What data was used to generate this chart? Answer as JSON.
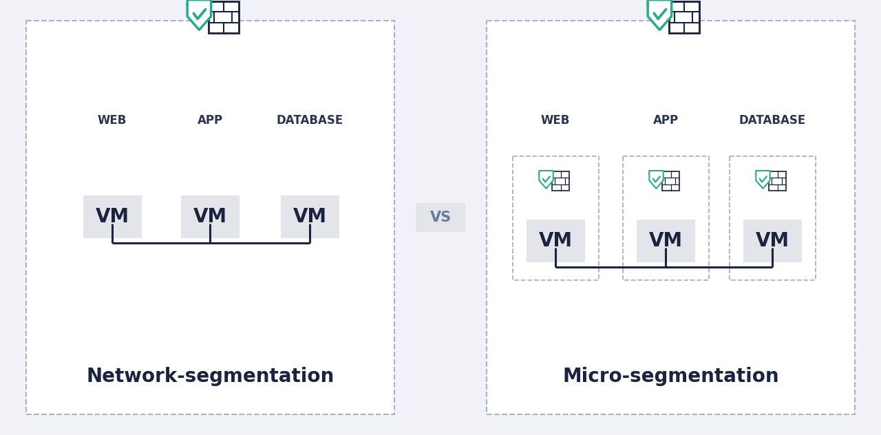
{
  "bg_color": "#f0f2f7",
  "panel_fill": "#ffffff",
  "dashed_border_color": "#aab0c8",
  "vm_box_color": "#e4e5ea",
  "dark_navy": "#1a2340",
  "teal_green": "#2aaa8f",
  "label_color": "#2a3550",
  "vs_color": "#6a7a9a",
  "vs_bg": "#e4e5ea",
  "left_title": "Network-segmentation",
  "right_title": "Micro-segmentation",
  "vs_text": "VS",
  "column_labels": [
    "WEB",
    "APP",
    "DATABASE"
  ],
  "vm_label": "VM",
  "title_fontsize": 20,
  "label_fontsize": 12,
  "vm_fontsize": 20,
  "vs_fontsize": 15
}
